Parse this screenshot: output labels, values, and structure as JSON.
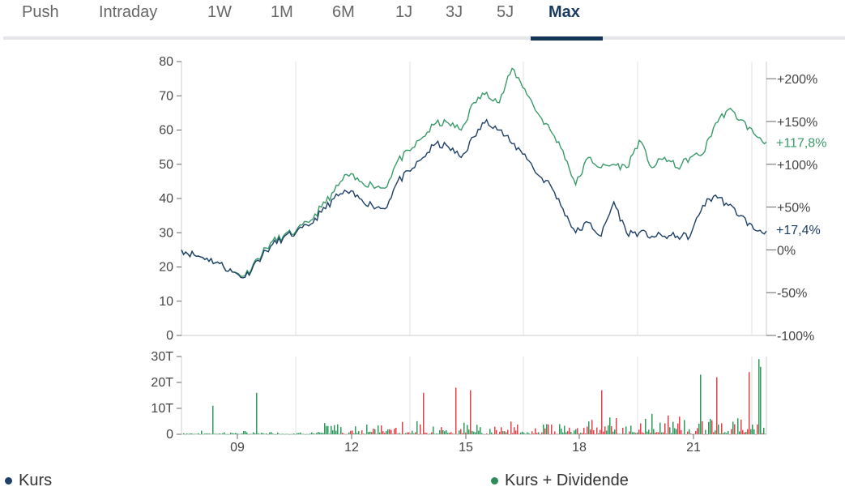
{
  "tabs": [
    "Push",
    "Intraday",
    "1W",
    "1M",
    "6M",
    "1J",
    "3J",
    "5J",
    "Max"
  ],
  "active_tab": "Max",
  "chart_data": [
    {
      "type": "line",
      "x_ticks": [
        "09",
        "12",
        "15",
        "18",
        "21"
      ],
      "ylim": [
        0,
        80
      ],
      "y_ticks": [
        "0",
        "10",
        "20",
        "30",
        "40",
        "50",
        "60",
        "70",
        "80"
      ],
      "y2_ticks": [
        "-100%",
        "-50%",
        "0%",
        "+50%",
        "+100%",
        "+150%",
        "+200%"
      ],
      "end_labels": {
        "kurs": "+17,4%",
        "kurs_dividende": "+117,8%"
      },
      "series": [
        {
          "name": "Kurs",
          "color": "#1e3f66",
          "values": [
            25,
            23.5,
            22.5,
            21,
            18.5,
            17,
            22,
            26,
            28.5,
            30,
            32,
            36,
            40,
            42,
            40,
            38,
            37,
            45,
            48,
            52,
            56,
            55,
            52,
            58,
            63,
            60,
            56,
            53,
            47,
            44,
            37,
            30,
            33,
            29,
            39,
            30,
            30,
            29,
            29,
            29,
            29,
            38,
            41,
            38,
            35,
            31,
            30.5
          ]
        },
        {
          "name": "Kurs + Dividende",
          "color": "#3a9a6a",
          "values": [
            25,
            23.5,
            22.5,
            21,
            18.5,
            17.5,
            22.5,
            27,
            29,
            30.5,
            33,
            37.5,
            42,
            47,
            45,
            44,
            43,
            51,
            54,
            58,
            62,
            62,
            60,
            68,
            71,
            68,
            78,
            72,
            65,
            60,
            54,
            44,
            52,
            49,
            50,
            49,
            57,
            49,
            52,
            49,
            52,
            53,
            62,
            66,
            63,
            59,
            56.5
          ]
        }
      ]
    },
    {
      "type": "bar",
      "x_ticks": [
        "09",
        "12",
        "15",
        "18",
        "21"
      ],
      "ylim": [
        0,
        30
      ],
      "y_ticks": [
        "0",
        "10T",
        "20T",
        "30T"
      ],
      "colors": [
        "#2e9a5c",
        "#e0424a"
      ]
    }
  ],
  "legend": [
    {
      "label": "Kurs",
      "color": "#1e3f66"
    },
    {
      "label": "Kurs + Dividende",
      "color": "#2e8b57"
    }
  ]
}
